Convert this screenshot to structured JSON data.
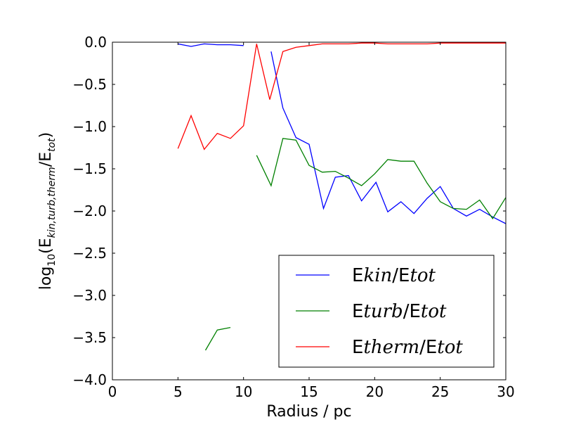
{
  "chart_data": {
    "type": "line",
    "xlabel": "Radius / pc",
    "ylabel": "log10(Ekin,turb,therm/Etot)",
    "xlim": [
      0,
      30
    ],
    "ylim": [
      -4.0,
      0.0
    ],
    "xticks": [
      "0",
      "5",
      "10",
      "15",
      "20",
      "25",
      "30"
    ],
    "yticks": [
      "0.0",
      "−0.5",
      "−1.0",
      "−1.5",
      "−2.0",
      "−2.5",
      "−3.0",
      "−3.5",
      "−4.0"
    ],
    "grid": false,
    "legend_position": "lower-right",
    "colors": {
      "kin": "#0000ff",
      "turb": "#008000",
      "therm": "#ff0000"
    },
    "series": [
      {
        "name": "Ekin/Etot",
        "key": "kin",
        "segments": [
          [
            [
              5,
              -0.02
            ],
            [
              6,
              -0.05
            ],
            [
              7,
              -0.02
            ],
            [
              8,
              -0.03
            ],
            [
              9,
              -0.03
            ],
            [
              10,
              -0.04
            ]
          ],
          [
            [
              12.1,
              -0.11
            ],
            [
              13,
              -0.78
            ],
            [
              14,
              -1.13
            ],
            [
              15,
              -1.21
            ],
            [
              16.1,
              -1.97
            ],
            [
              17,
              -1.6
            ],
            [
              18,
              -1.58
            ],
            [
              19,
              -1.88
            ],
            [
              20.1,
              -1.66
            ],
            [
              21,
              -2.01
            ],
            [
              22,
              -1.89
            ],
            [
              23,
              -2.03
            ],
            [
              24,
              -1.85
            ],
            [
              25,
              -1.71
            ],
            [
              26,
              -1.97
            ],
            [
              27,
              -2.06
            ],
            [
              28,
              -1.98
            ],
            [
              29,
              -2.07
            ],
            [
              30,
              -2.15
            ]
          ]
        ]
      },
      {
        "name": "Eturb/Etot",
        "key": "turb",
        "segments": [
          [
            [
              7.1,
              -3.65
            ],
            [
              8,
              -3.41
            ],
            [
              9,
              -3.38
            ]
          ],
          [
            [
              11,
              -1.34
            ],
            [
              12.1,
              -1.7
            ],
            [
              13,
              -1.14
            ],
            [
              14,
              -1.16
            ],
            [
              15,
              -1.46
            ],
            [
              16,
              -1.54
            ],
            [
              17,
              -1.53
            ],
            [
              18,
              -1.61
            ],
            [
              19,
              -1.7
            ],
            [
              20,
              -1.56
            ],
            [
              21,
              -1.39
            ],
            [
              22,
              -1.41
            ],
            [
              23,
              -1.41
            ],
            [
              24,
              -1.67
            ],
            [
              25,
              -1.89
            ],
            [
              26,
              -1.97
            ],
            [
              27,
              -1.98
            ],
            [
              28,
              -1.87
            ],
            [
              29,
              -2.09
            ],
            [
              30,
              -1.84
            ]
          ]
        ]
      },
      {
        "name": "Etherm/Etot",
        "key": "therm",
        "segments": [
          [
            [
              5,
              -1.26
            ],
            [
              6,
              -0.87
            ],
            [
              7,
              -1.27
            ],
            [
              8,
              -1.08
            ],
            [
              9,
              -1.14
            ],
            [
              10,
              -0.99
            ],
            [
              11,
              -0.02
            ],
            [
              12,
              -0.68
            ],
            [
              13,
              -0.11
            ],
            [
              14,
              -0.06
            ],
            [
              15,
              -0.04
            ],
            [
              16,
              -0.02
            ],
            [
              17,
              -0.02
            ],
            [
              18,
              -0.02
            ],
            [
              19,
              -0.01
            ],
            [
              20,
              -0.01
            ],
            [
              21,
              -0.02
            ],
            [
              22,
              -0.02
            ],
            [
              23,
              -0.02
            ],
            [
              24,
              -0.02
            ],
            [
              25,
              -0.01
            ],
            [
              26,
              -0.01
            ],
            [
              27,
              -0.01
            ],
            [
              28,
              -0.01
            ],
            [
              29,
              -0.01
            ],
            [
              30,
              -0.01
            ]
          ]
        ]
      }
    ],
    "legend": [
      {
        "key": "kin",
        "pre": "E",
        "italic": "kin",
        "mid": "/E",
        "post": "tot"
      },
      {
        "key": "turb",
        "pre": "E",
        "italic": "turb",
        "mid": "/E",
        "post": "tot"
      },
      {
        "key": "therm",
        "pre": "E",
        "italic": "therm",
        "mid": "/E",
        "post": "tot"
      }
    ]
  }
}
